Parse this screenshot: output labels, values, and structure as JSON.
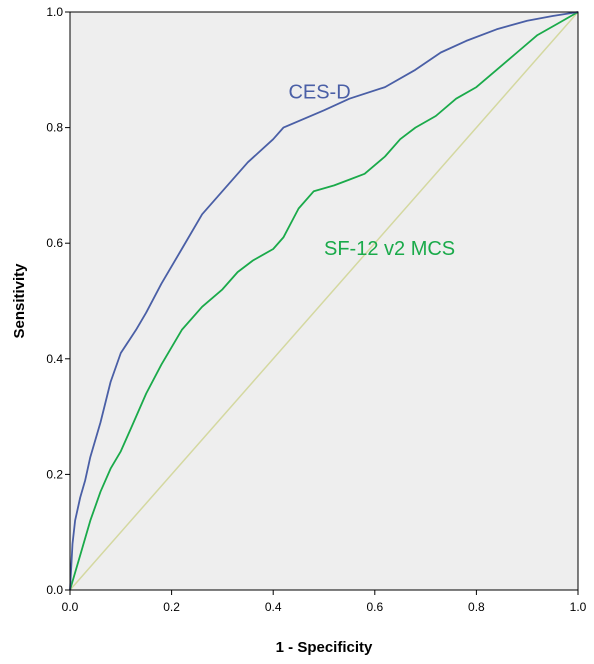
{
  "chart_data": {
    "type": "line",
    "title": "",
    "xlabel": "1 - Specificity",
    "ylabel": "Sensitivity",
    "xlim": [
      0,
      1
    ],
    "ylim": [
      0,
      1
    ],
    "grid": false,
    "legend": "none",
    "background_color": "#eeeeee",
    "x_ticks": [
      "0.0",
      "0.2",
      "0.4",
      "0.6",
      "0.8",
      "1.0"
    ],
    "y_ticks": [
      "0.0",
      "0.2",
      "0.4",
      "0.6",
      "0.8",
      "1.0"
    ],
    "series": [
      {
        "name": "CES-D",
        "color": "#4a5fa6",
        "x": [
          0,
          0.005,
          0.01,
          0.02,
          0.03,
          0.04,
          0.06,
          0.08,
          0.1,
          0.13,
          0.15,
          0.18,
          0.22,
          0.26,
          0.3,
          0.35,
          0.4,
          0.42,
          0.5,
          0.55,
          0.62,
          0.68,
          0.73,
          0.78,
          0.84,
          0.9,
          0.95,
          1.0
        ],
        "y": [
          0,
          0.08,
          0.12,
          0.16,
          0.19,
          0.23,
          0.29,
          0.36,
          0.41,
          0.45,
          0.48,
          0.53,
          0.59,
          0.65,
          0.69,
          0.74,
          0.78,
          0.8,
          0.83,
          0.85,
          0.87,
          0.9,
          0.93,
          0.95,
          0.97,
          0.985,
          0.993,
          1.0
        ]
      },
      {
        "name": "SF-12 v2 MCS",
        "color": "#1aaa4a",
        "x": [
          0,
          0.02,
          0.04,
          0.06,
          0.08,
          0.1,
          0.12,
          0.15,
          0.18,
          0.22,
          0.26,
          0.3,
          0.33,
          0.36,
          0.4,
          0.42,
          0.45,
          0.48,
          0.52,
          0.55,
          0.58,
          0.62,
          0.65,
          0.68,
          0.72,
          0.76,
          0.8,
          0.84,
          0.88,
          0.92,
          0.96,
          1.0
        ],
        "y": [
          0,
          0.06,
          0.12,
          0.17,
          0.21,
          0.24,
          0.28,
          0.34,
          0.39,
          0.45,
          0.49,
          0.52,
          0.55,
          0.57,
          0.59,
          0.61,
          0.66,
          0.69,
          0.7,
          0.71,
          0.72,
          0.75,
          0.78,
          0.8,
          0.82,
          0.85,
          0.87,
          0.9,
          0.93,
          0.96,
          0.98,
          1.0
        ]
      },
      {
        "name": "",
        "color": "#d4d8a0",
        "x": [
          0,
          1
        ],
        "y": [
          0,
          1
        ]
      }
    ],
    "annotations": [
      {
        "text": "CES-D",
        "x": 0.43,
        "y": 0.85,
        "color": "#4a5fa6"
      },
      {
        "text": "SF-12 v2 MCS",
        "x": 0.5,
        "y": 0.58,
        "color": "#1aaa4a"
      }
    ]
  }
}
